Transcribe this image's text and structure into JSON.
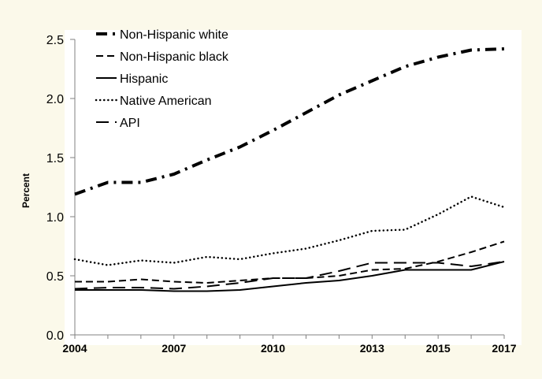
{
  "colors": {
    "background": "#fbf9ea",
    "plot_area": "#ffffff",
    "line": "#000000"
  },
  "chart_data": {
    "type": "line",
    "title": "",
    "xlabel": "",
    "ylabel": "Percent",
    "xlim": [
      2004,
      2017
    ],
    "ylim": [
      0,
      2.5
    ],
    "y_ticks": [
      0,
      0.5,
      1,
      1.5,
      2,
      2.5
    ],
    "y_tick_labels": [
      "0.0",
      "0.5",
      "1.0",
      "1.5",
      "2.0",
      "2.5"
    ],
    "x_ticks": [
      2004,
      2007,
      2010,
      2013,
      2015,
      2017
    ],
    "x_tick_labels": [
      "2004",
      "2007",
      "2010",
      "2013",
      "2015",
      "2017"
    ],
    "grid": false,
    "legend_position": "top-left",
    "x": [
      2004,
      2005,
      2006,
      2007,
      2008,
      2009,
      2010,
      2011,
      2012,
      2013,
      2014,
      2015,
      2016,
      2017
    ],
    "series": [
      {
        "name": "Non-Hispanic white",
        "style": "dash-dot-thick",
        "values": [
          1.19,
          1.29,
          1.29,
          1.36,
          1.48,
          1.59,
          1.73,
          1.88,
          2.03,
          2.15,
          2.27,
          2.35,
          2.41,
          2.42
        ]
      },
      {
        "name": "Non-Hispanic black",
        "style": "dashed",
        "values": [
          0.45,
          0.45,
          0.47,
          0.45,
          0.44,
          0.46,
          0.48,
          0.48,
          0.5,
          0.55,
          0.56,
          0.62,
          0.7,
          0.79
        ]
      },
      {
        "name": "Hispanic",
        "style": "solid",
        "values": [
          0.38,
          0.38,
          0.38,
          0.37,
          0.37,
          0.38,
          0.41,
          0.44,
          0.46,
          0.5,
          0.55,
          0.55,
          0.55,
          0.62
        ]
      },
      {
        "name": "Native American",
        "style": "dotted",
        "values": [
          0.64,
          0.59,
          0.63,
          0.61,
          0.66,
          0.64,
          0.69,
          0.73,
          0.8,
          0.88,
          0.89,
          1.02,
          1.17,
          1.08
        ]
      },
      {
        "name": "API",
        "style": "long-dash",
        "values": [
          0.39,
          0.4,
          0.4,
          0.39,
          0.41,
          0.44,
          0.48,
          0.48,
          0.54,
          0.61,
          0.61,
          0.61,
          0.58,
          0.62
        ]
      }
    ]
  }
}
